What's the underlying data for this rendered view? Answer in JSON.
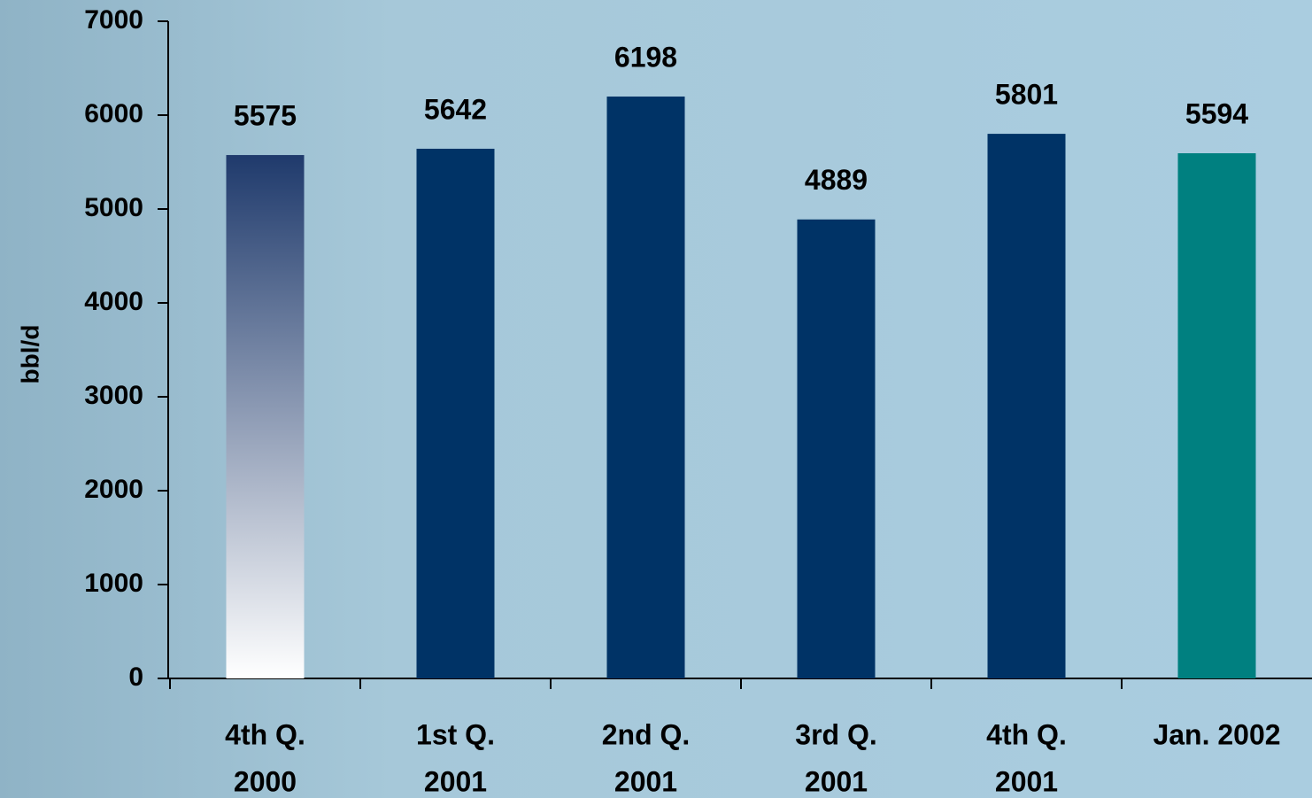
{
  "chart_data": {
    "type": "bar",
    "y_label": "bbl/d",
    "categories": [
      [
        "4th Q.",
        "2000"
      ],
      [
        "1st Q.",
        "2001"
      ],
      [
        "2nd Q.",
        "2001"
      ],
      [
        "3rd Q.",
        "2001"
      ],
      [
        "4th Q.",
        "2001"
      ],
      [
        "Jan. 2002"
      ]
    ],
    "values": [
      5575,
      5642,
      6198,
      4889,
      5801,
      5594
    ],
    "colors": [
      {
        "from": "#ffffff",
        "to": "#1f3a6c"
      },
      "#003366",
      "#003366",
      "#003366",
      "#003366",
      "#008080"
    ],
    "ylim": [
      0,
      7000
    ],
    "yticks": [
      0,
      1000,
      2000,
      3000,
      4000,
      5000,
      6000,
      7000
    ]
  }
}
